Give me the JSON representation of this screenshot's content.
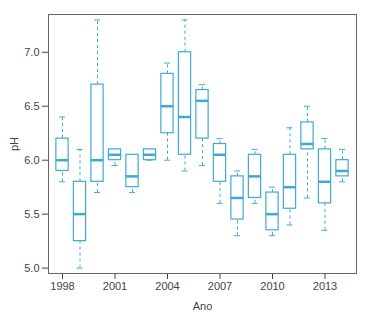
{
  "chart_data": {
    "type": "box",
    "x_label": "Ano",
    "y_label": "pH",
    "color": "#3fa9d4",
    "x": [
      1998,
      1999,
      2000,
      2001,
      2002,
      2003,
      2004,
      2005,
      2006,
      2007,
      2008,
      2009,
      2010,
      2011,
      2012,
      2013,
      2014
    ],
    "min": [
      5.8,
      5.0,
      5.7,
      5.95,
      5.7,
      6.0,
      6.0,
      5.9,
      5.95,
      5.6,
      5.3,
      5.6,
      5.3,
      5.4,
      5.65,
      5.35,
      5.8
    ],
    "q1": [
      5.9,
      5.25,
      5.8,
      6.0,
      5.75,
      6.0,
      6.25,
      6.05,
      6.2,
      5.8,
      5.45,
      5.65,
      5.35,
      5.55,
      6.1,
      5.6,
      5.85
    ],
    "median": [
      6.0,
      5.5,
      6.0,
      6.05,
      5.85,
      6.05,
      6.5,
      6.4,
      6.55,
      6.05,
      5.65,
      5.85,
      5.5,
      5.75,
      6.15,
      5.8,
      5.9
    ],
    "q3": [
      6.2,
      5.8,
      6.7,
      6.1,
      6.05,
      6.1,
      6.8,
      7.0,
      6.65,
      6.15,
      5.85,
      6.05,
      5.7,
      6.05,
      6.35,
      6.1,
      6.0
    ],
    "max": [
      6.4,
      6.1,
      7.3,
      6.1,
      6.05,
      6.1,
      6.9,
      7.3,
      6.7,
      6.2,
      5.9,
      6.1,
      5.75,
      6.3,
      6.5,
      6.2,
      6.1
    ],
    "xlim": [
      1997.2,
      2014.8
    ],
    "xticks": [
      1998,
      2001,
      2004,
      2007,
      2010,
      2013
    ],
    "ylim": [
      4.95,
      7.35
    ],
    "yticks": [
      {
        "value": 5,
        "label": "5.0"
      },
      {
        "value": 5.5,
        "label": "5.5"
      },
      {
        "value": 6,
        "label": "6.0"
      },
      {
        "value": 6.5,
        "label": "6.5"
      },
      {
        "value": 7,
        "label": "7.0"
      }
    ],
    "grid": false
  }
}
